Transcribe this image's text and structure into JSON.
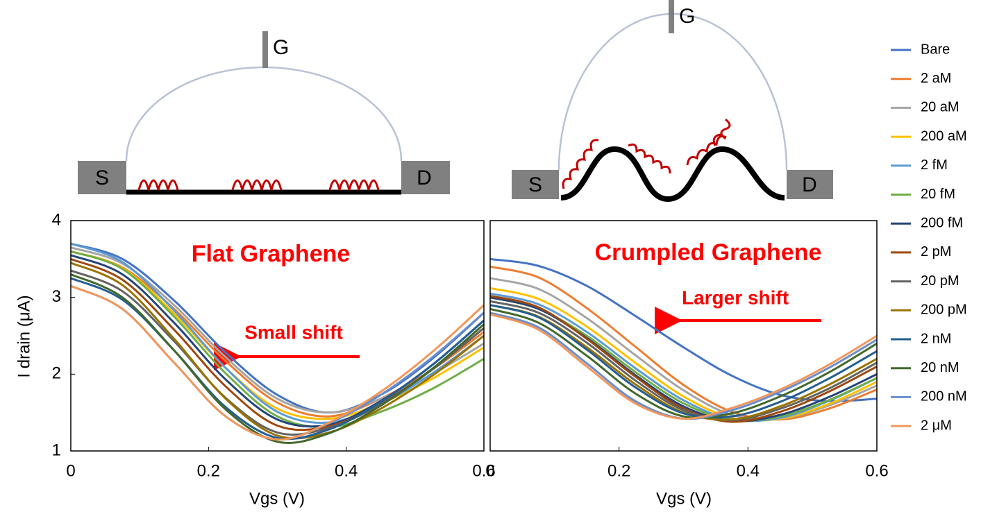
{
  "diagrams": [
    {
      "gate": "G",
      "source": "S",
      "drain": "D"
    },
    {
      "gate": "G",
      "source": "S",
      "drain": "D"
    }
  ],
  "chart_data": [
    {
      "type": "line",
      "xlabel": "Vgs (V)",
      "ylabel": "I drain (μA)",
      "annotations": [
        "Flat Graphene",
        "Small shift"
      ],
      "x": [
        0,
        0.075,
        0.15,
        0.225,
        0.3,
        0.375,
        0.45,
        0.525,
        0.6
      ],
      "xlim": [
        0,
        0.6
      ],
      "xticks": [
        0,
        0.2,
        0.4,
        0.6
      ],
      "ylim": [
        1,
        4
      ],
      "yticks": [
        1,
        2,
        3,
        4
      ],
      "legend": "right",
      "series": [
        {
          "name": "Bare",
          "color": "#4472c4",
          "values": [
            3.7,
            3.5,
            2.96,
            2.28,
            1.73,
            1.5,
            1.73,
            2.2,
            2.8
          ]
        },
        {
          "name": "2 aM",
          "color": "#ed7d31",
          "values": [
            3.6,
            3.39,
            2.85,
            2.17,
            1.63,
            1.45,
            1.68,
            2.06,
            2.55
          ]
        },
        {
          "name": "20 aM",
          "color": "#a5a5a5",
          "values": [
            3.65,
            3.44,
            2.9,
            2.22,
            1.68,
            1.5,
            1.68,
            2.0,
            2.4
          ]
        },
        {
          "name": "200 aM",
          "color": "#ffc000",
          "values": [
            3.6,
            3.38,
            2.79,
            2.08,
            1.55,
            1.42,
            1.62,
            1.94,
            2.35
          ]
        },
        {
          "name": "2 fM",
          "color": "#5b9bd5",
          "values": [
            3.7,
            3.46,
            2.83,
            2.08,
            1.51,
            1.37,
            1.61,
            2.01,
            2.5
          ]
        },
        {
          "name": "20 fM",
          "color": "#70ad47",
          "values": [
            3.6,
            3.37,
            2.75,
            2.01,
            1.45,
            1.31,
            1.51,
            1.81,
            2.2
          ]
        },
        {
          "name": "200 fM",
          "color": "#264478",
          "values": [
            3.55,
            3.3,
            2.67,
            1.93,
            1.41,
            1.34,
            1.65,
            2.12,
            2.7
          ]
        },
        {
          "name": "2 pM",
          "color": "#9e480e",
          "values": [
            3.5,
            3.23,
            2.58,
            1.84,
            1.33,
            1.32,
            1.62,
            2.06,
            2.6
          ]
        },
        {
          "name": "20 pM",
          "color": "#636363",
          "values": [
            3.35,
            3.08,
            2.43,
            1.69,
            1.24,
            1.3,
            1.61,
            2.06,
            2.6
          ]
        },
        {
          "name": "200 pM",
          "color": "#997300",
          "values": [
            3.45,
            3.16,
            2.46,
            1.68,
            1.2,
            1.24,
            1.55,
            1.98,
            2.5
          ]
        },
        {
          "name": "2 nM",
          "color": "#255e91",
          "values": [
            3.25,
            2.97,
            2.31,
            1.57,
            1.17,
            1.28,
            1.64,
            2.12,
            2.7
          ]
        },
        {
          "name": "20 nM",
          "color": "#43682b",
          "values": [
            3.3,
            3.0,
            2.31,
            1.54,
            1.12,
            1.23,
            1.59,
            2.07,
            2.65
          ]
        },
        {
          "name": "200 nM",
          "color": "#698ed0",
          "values": [
            3.15,
            2.85,
            2.15,
            1.45,
            1.15,
            1.36,
            1.73,
            2.22,
            2.8
          ]
        },
        {
          "name": "2 μM",
          "color": "#f1975a",
          "values": [
            3.15,
            2.85,
            2.15,
            1.45,
            1.15,
            1.37,
            1.77,
            2.29,
            2.9
          ]
        }
      ]
    },
    {
      "type": "line",
      "xlabel": "Vgs (V)",
      "annotations": [
        "Crumpled Graphene",
        "Larger shift"
      ],
      "x": [
        0,
        0.075,
        0.15,
        0.225,
        0.3,
        0.375,
        0.45,
        0.525,
        0.6
      ],
      "xlim": [
        0,
        0.6
      ],
      "xticks": [
        0,
        0.2,
        0.4,
        0.6
      ],
      "ylim": [
        1,
        4
      ],
      "series": [
        {
          "color": "#4472c4",
          "values": [
            3.5,
            3.41,
            3.15,
            2.76,
            2.35,
            1.98,
            1.73,
            1.65,
            1.68
          ]
        },
        {
          "color": "#ed7d31",
          "values": [
            3.4,
            3.26,
            2.86,
            2.36,
            1.86,
            1.51,
            1.41,
            1.55,
            1.8
          ]
        },
        {
          "color": "#a5a5a5",
          "values": [
            3.25,
            3.11,
            2.73,
            2.25,
            1.79,
            1.47,
            1.42,
            1.59,
            1.85
          ]
        },
        {
          "color": "#ffc000",
          "values": [
            3.12,
            2.98,
            2.62,
            2.15,
            1.71,
            1.43,
            1.42,
            1.61,
            1.9
          ]
        },
        {
          "color": "#5b9bd5",
          "values": [
            3.05,
            2.91,
            2.55,
            2.08,
            1.66,
            1.41,
            1.43,
            1.65,
            1.95
          ]
        },
        {
          "color": "#70ad47",
          "values": [
            3.0,
            2.85,
            2.5,
            2.03,
            1.62,
            1.4,
            1.45,
            1.66,
            1.95
          ]
        },
        {
          "color": "#264478",
          "values": [
            3.0,
            2.85,
            2.47,
            1.99,
            1.58,
            1.39,
            1.47,
            1.7,
            2.0
          ]
        },
        {
          "color": "#9e480e",
          "values": [
            3.02,
            2.87,
            2.46,
            1.97,
            1.55,
            1.38,
            1.51,
            1.77,
            2.1
          ]
        },
        {
          "color": "#636363",
          "values": [
            2.95,
            2.8,
            2.41,
            1.92,
            1.53,
            1.4,
            1.55,
            1.81,
            2.15
          ]
        },
        {
          "color": "#997300",
          "values": [
            2.9,
            2.75,
            2.35,
            1.87,
            1.5,
            1.41,
            1.58,
            1.86,
            2.2
          ]
        },
        {
          "color": "#255e91",
          "values": [
            2.9,
            2.74,
            2.32,
            1.83,
            1.49,
            1.45,
            1.64,
            1.94,
            2.3
          ]
        },
        {
          "color": "#43682b",
          "values": [
            2.85,
            2.67,
            2.24,
            1.75,
            1.45,
            1.49,
            1.71,
            2.02,
            2.4
          ]
        },
        {
          "color": "#698ed0",
          "values": [
            2.8,
            2.61,
            2.14,
            1.65,
            1.42,
            1.53,
            1.77,
            2.08,
            2.45
          ]
        },
        {
          "color": "#f1975a",
          "values": [
            2.78,
            2.58,
            2.1,
            1.62,
            1.42,
            1.56,
            1.8,
            2.12,
            2.5
          ]
        }
      ]
    }
  ]
}
